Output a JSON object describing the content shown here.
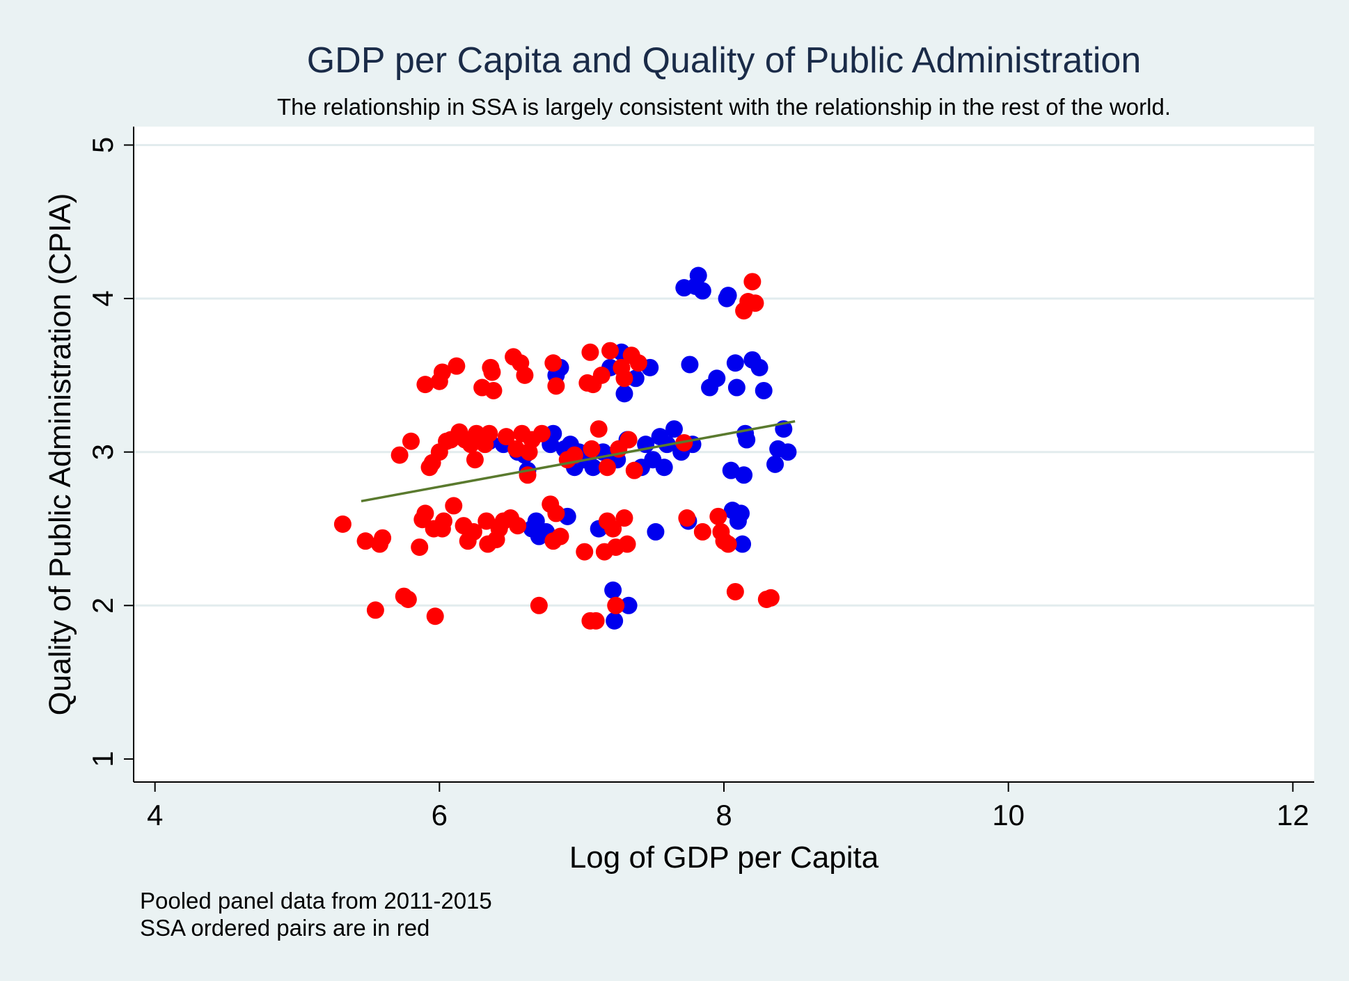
{
  "chart_data": {
    "type": "scatter",
    "title": "GDP per Capita and Quality of Public Administration",
    "subtitle": "The relationship in SSA is largely consistent with the relationship in the rest of the world.",
    "xlabel": "Log of GDP per Capita",
    "ylabel": "Quality of Public Administration (CPIA)",
    "xlim": [
      3.85,
      12.15
    ],
    "ylim": [
      0.85,
      5.12
    ],
    "xticks": [
      4,
      6,
      8,
      10,
      12
    ],
    "yticks": [
      1,
      2,
      3,
      4,
      5
    ],
    "grid": "horizontal",
    "colors": {
      "background": "#eaf2f3",
      "plot_background": "#ffffff",
      "grid": "#e2ecee",
      "fit_line": "#5a7a2e",
      "rest_of_world": "#0000ee",
      "ssa": "#ff0000"
    },
    "notes": [
      "Pooled panel data from 2011-2015",
      "SSA ordered pairs are in red"
    ],
    "fit_line": {
      "x": [
        5.45,
        8.5
      ],
      "y": [
        2.68,
        3.2
      ]
    },
    "series": [
      {
        "color": "#0000ee",
        "points": [
          [
            6.35,
            3.07
          ],
          [
            6.45,
            3.05
          ],
          [
            6.55,
            3.0
          ],
          [
            6.6,
            2.98
          ],
          [
            6.62,
            2.88
          ],
          [
            6.65,
            2.5
          ],
          [
            6.68,
            2.55
          ],
          [
            6.7,
            2.45
          ],
          [
            6.75,
            2.48
          ],
          [
            6.78,
            3.05
          ],
          [
            6.8,
            3.12
          ],
          [
            6.82,
            3.5
          ],
          [
            6.85,
            3.55
          ],
          [
            6.88,
            3.02
          ],
          [
            6.9,
            2.58
          ],
          [
            6.92,
            3.05
          ],
          [
            6.95,
            2.9
          ],
          [
            6.98,
            3.0
          ],
          [
            7.02,
            2.95
          ],
          [
            7.08,
            2.9
          ],
          [
            7.12,
            2.5
          ],
          [
            7.15,
            3.0
          ],
          [
            7.2,
            3.55
          ],
          [
            7.22,
            2.1
          ],
          [
            7.23,
            1.9
          ],
          [
            7.25,
            2.95
          ],
          [
            7.28,
            3.65
          ],
          [
            7.3,
            3.38
          ],
          [
            7.32,
            3.08
          ],
          [
            7.33,
            2.0
          ],
          [
            7.38,
            3.48
          ],
          [
            7.42,
            2.9
          ],
          [
            7.45,
            3.05
          ],
          [
            7.48,
            3.55
          ],
          [
            7.5,
            2.95
          ],
          [
            7.52,
            2.48
          ],
          [
            7.55,
            3.1
          ],
          [
            7.58,
            2.9
          ],
          [
            7.6,
            3.05
          ],
          [
            7.65,
            3.15
          ],
          [
            7.7,
            3.0
          ],
          [
            7.72,
            4.07
          ],
          [
            7.75,
            2.55
          ],
          [
            7.76,
            3.57
          ],
          [
            7.78,
            3.05
          ],
          [
            7.8,
            4.08
          ],
          [
            7.82,
            4.15
          ],
          [
            7.85,
            4.05
          ],
          [
            7.9,
            3.42
          ],
          [
            7.95,
            3.48
          ],
          [
            8.02,
            4.0
          ],
          [
            8.03,
            4.02
          ],
          [
            8.05,
            2.88
          ],
          [
            8.06,
            2.62
          ],
          [
            8.08,
            3.58
          ],
          [
            8.09,
            3.42
          ],
          [
            8.1,
            2.55
          ],
          [
            8.12,
            2.6
          ],
          [
            8.13,
            2.4
          ],
          [
            8.14,
            2.85
          ],
          [
            8.15,
            3.12
          ],
          [
            8.16,
            3.08
          ],
          [
            8.2,
            3.6
          ],
          [
            8.25,
            3.55
          ],
          [
            8.28,
            3.4
          ],
          [
            8.36,
            2.92
          ],
          [
            8.38,
            3.02
          ],
          [
            8.42,
            3.15
          ],
          [
            8.45,
            3.0
          ]
        ]
      },
      {
        "color": "#ff0000",
        "points": [
          [
            5.32,
            2.53
          ],
          [
            5.48,
            2.42
          ],
          [
            5.55,
            1.97
          ],
          [
            5.58,
            2.4
          ],
          [
            5.6,
            2.44
          ],
          [
            5.72,
            2.98
          ],
          [
            5.75,
            2.06
          ],
          [
            5.78,
            2.04
          ],
          [
            5.8,
            3.07
          ],
          [
            5.86,
            2.38
          ],
          [
            5.88,
            2.56
          ],
          [
            5.9,
            2.6
          ],
          [
            5.9,
            3.44
          ],
          [
            5.93,
            2.9
          ],
          [
            5.95,
            2.93
          ],
          [
            5.96,
            2.5
          ],
          [
            5.97,
            1.93
          ],
          [
            6.0,
            3.46
          ],
          [
            6.0,
            3.0
          ],
          [
            6.02,
            2.5
          ],
          [
            6.02,
            3.52
          ],
          [
            6.03,
            2.55
          ],
          [
            6.05,
            3.07
          ],
          [
            6.08,
            3.08
          ],
          [
            6.1,
            2.65
          ],
          [
            6.12,
            3.56
          ],
          [
            6.14,
            3.13
          ],
          [
            6.17,
            2.52
          ],
          [
            6.18,
            3.08
          ],
          [
            6.2,
            2.42
          ],
          [
            6.22,
            3.05
          ],
          [
            6.24,
            2.48
          ],
          [
            6.25,
            2.95
          ],
          [
            6.26,
            3.12
          ],
          [
            6.28,
            3.1
          ],
          [
            6.3,
            3.42
          ],
          [
            6.32,
            3.05
          ],
          [
            6.33,
            2.55
          ],
          [
            6.34,
            2.4
          ],
          [
            6.35,
            3.12
          ],
          [
            6.36,
            3.55
          ],
          [
            6.37,
            3.52
          ],
          [
            6.38,
            3.4
          ],
          [
            6.4,
            2.43
          ],
          [
            6.42,
            2.5
          ],
          [
            6.45,
            2.55
          ],
          [
            6.47,
            3.1
          ],
          [
            6.5,
            2.57
          ],
          [
            6.52,
            3.62
          ],
          [
            6.54,
            3.02
          ],
          [
            6.55,
            2.52
          ],
          [
            6.57,
            3.58
          ],
          [
            6.58,
            3.12
          ],
          [
            6.6,
            3.5
          ],
          [
            6.62,
            2.85
          ],
          [
            6.63,
            3.0
          ],
          [
            6.65,
            3.08
          ],
          [
            6.7,
            2.0
          ],
          [
            6.72,
            3.12
          ],
          [
            6.78,
            2.66
          ],
          [
            6.8,
            3.58
          ],
          [
            6.8,
            2.42
          ],
          [
            6.82,
            2.6
          ],
          [
            6.82,
            3.43
          ],
          [
            6.85,
            2.45
          ],
          [
            6.9,
            2.95
          ],
          [
            6.95,
            2.98
          ],
          [
            7.02,
            2.35
          ],
          [
            7.04,
            3.45
          ],
          [
            7.06,
            3.65
          ],
          [
            7.06,
            1.9
          ],
          [
            7.07,
            3.02
          ],
          [
            7.08,
            3.44
          ],
          [
            7.1,
            1.9
          ],
          [
            7.12,
            3.15
          ],
          [
            7.14,
            3.5
          ],
          [
            7.16,
            2.35
          ],
          [
            7.18,
            2.9
          ],
          [
            7.18,
            2.55
          ],
          [
            7.2,
            3.66
          ],
          [
            7.22,
            2.5
          ],
          [
            7.24,
            2.38
          ],
          [
            7.24,
            2.0
          ],
          [
            7.26,
            3.02
          ],
          [
            7.28,
            3.55
          ],
          [
            7.3,
            3.48
          ],
          [
            7.3,
            2.57
          ],
          [
            7.32,
            2.4
          ],
          [
            7.33,
            3.08
          ],
          [
            7.35,
            3.63
          ],
          [
            7.37,
            2.88
          ],
          [
            7.4,
            3.58
          ],
          [
            7.72,
            3.06
          ],
          [
            7.74,
            2.57
          ],
          [
            7.85,
            2.48
          ],
          [
            7.96,
            2.58
          ],
          [
            7.98,
            2.48
          ],
          [
            8.0,
            2.42
          ],
          [
            8.03,
            2.4
          ],
          [
            8.08,
            2.09
          ],
          [
            8.14,
            3.92
          ],
          [
            8.17,
            3.98
          ],
          [
            8.2,
            4.11
          ],
          [
            8.22,
            3.97
          ],
          [
            8.3,
            2.04
          ],
          [
            8.33,
            2.05
          ]
        ]
      }
    ]
  }
}
